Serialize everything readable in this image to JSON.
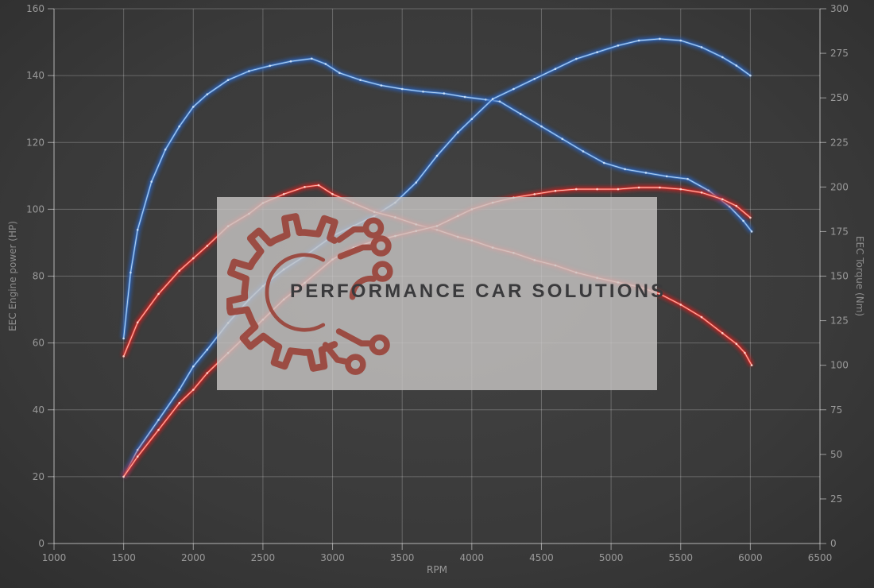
{
  "watermark": {
    "text": "PERFORMANCE CAR SOLUTIONS",
    "box_color": "#c9c7c5",
    "logo_color": "#9a4238",
    "text_color": "#3a3a3c"
  },
  "chart_data": {
    "type": "line",
    "title": "",
    "xlabel": "RPM",
    "x_range": [
      1000,
      6500
    ],
    "x_ticks": [
      1000,
      1500,
      2000,
      2500,
      3000,
      3500,
      4000,
      4500,
      5000,
      5500,
      6000,
      6500
    ],
    "left_axis": {
      "label": "EEC Engine power (HP)",
      "range": [
        0,
        160
      ],
      "ticks": [
        0,
        20,
        40,
        60,
        80,
        100,
        120,
        140,
        160
      ]
    },
    "right_axis": {
      "label": "EEC Torque (Nm)",
      "range": [
        0,
        300
      ],
      "ticks": [
        0,
        25,
        50,
        75,
        100,
        125,
        150,
        175,
        200,
        225,
        250,
        275,
        300
      ]
    },
    "grid": true,
    "legend": "none",
    "series": [
      {
        "name": "torque-blue",
        "unit": "Nm",
        "axis": "right",
        "color": "#4a86d0",
        "glow": "#2a5fb4",
        "highlight": "#cfe3f8",
        "points": [
          [
            1500,
            115
          ],
          [
            1550,
            152
          ],
          [
            1600,
            176
          ],
          [
            1700,
            203
          ],
          [
            1800,
            221
          ],
          [
            1900,
            234
          ],
          [
            2000,
            245
          ],
          [
            2100,
            252
          ],
          [
            2250,
            260
          ],
          [
            2400,
            265
          ],
          [
            2550,
            268
          ],
          [
            2700,
            270.5
          ],
          [
            2850,
            272
          ],
          [
            2950,
            269
          ],
          [
            3050,
            264
          ],
          [
            3200,
            260
          ],
          [
            3350,
            257
          ],
          [
            3500,
            255
          ],
          [
            3650,
            253.5
          ],
          [
            3800,
            252.5
          ],
          [
            3950,
            250.5
          ],
          [
            4100,
            249
          ],
          [
            4200,
            248
          ],
          [
            4350,
            241
          ],
          [
            4500,
            234
          ],
          [
            4650,
            227
          ],
          [
            4800,
            220
          ],
          [
            4950,
            213.5
          ],
          [
            5100,
            210
          ],
          [
            5250,
            208
          ],
          [
            5400,
            206
          ],
          [
            5550,
            204.5
          ],
          [
            5700,
            198
          ],
          [
            5850,
            189
          ],
          [
            5950,
            181
          ],
          [
            6010,
            175
          ]
        ]
      },
      {
        "name": "power-blue",
        "unit": "HP",
        "axis": "left",
        "color": "#4a86d0",
        "glow": "#2a5fb4",
        "highlight": "#cfe3f8",
        "points": [
          [
            1500,
            20
          ],
          [
            1600,
            28
          ],
          [
            1750,
            37
          ],
          [
            1900,
            46
          ],
          [
            2000,
            53
          ],
          [
            2100,
            58
          ],
          [
            2250,
            66
          ],
          [
            2400,
            73
          ],
          [
            2500,
            77
          ],
          [
            2650,
            82
          ],
          [
            2800,
            86
          ],
          [
            3000,
            92
          ],
          [
            3150,
            95
          ],
          [
            3300,
            98
          ],
          [
            3450,
            102
          ],
          [
            3600,
            108
          ],
          [
            3750,
            116
          ],
          [
            3900,
            123
          ],
          [
            4000,
            127
          ],
          [
            4150,
            133
          ],
          [
            4300,
            136
          ],
          [
            4450,
            139
          ],
          [
            4600,
            142
          ],
          [
            4750,
            145
          ],
          [
            4900,
            147
          ],
          [
            5050,
            149
          ],
          [
            5200,
            150.5
          ],
          [
            5350,
            151
          ],
          [
            5500,
            150.5
          ],
          [
            5650,
            148.5
          ],
          [
            5800,
            145.5
          ],
          [
            5900,
            143
          ],
          [
            6000,
            140
          ]
        ]
      },
      {
        "name": "torque-red",
        "unit": "Nm",
        "axis": "right",
        "color": "#e8453c",
        "glow": "#c02020",
        "highlight": "#ffd8d0",
        "points": [
          [
            1500,
            105
          ],
          [
            1600,
            124
          ],
          [
            1750,
            140
          ],
          [
            1900,
            153
          ],
          [
            2000,
            160
          ],
          [
            2100,
            167
          ],
          [
            2250,
            178
          ],
          [
            2400,
            185
          ],
          [
            2500,
            191
          ],
          [
            2650,
            196
          ],
          [
            2800,
            200
          ],
          [
            2900,
            201
          ],
          [
            3000,
            196
          ],
          [
            3150,
            191
          ],
          [
            3300,
            186
          ],
          [
            3450,
            183
          ],
          [
            3600,
            179
          ],
          [
            3750,
            176
          ],
          [
            3900,
            172
          ],
          [
            4000,
            170
          ],
          [
            4150,
            166
          ],
          [
            4300,
            163
          ],
          [
            4450,
            159
          ],
          [
            4600,
            156
          ],
          [
            4750,
            152
          ],
          [
            4900,
            149
          ],
          [
            5050,
            146.5
          ],
          [
            5200,
            144
          ],
          [
            5350,
            140
          ],
          [
            5500,
            134
          ],
          [
            5650,
            127
          ],
          [
            5800,
            118
          ],
          [
            5900,
            112
          ],
          [
            5960,
            107
          ],
          [
            6010,
            100
          ]
        ]
      },
      {
        "name": "power-red",
        "unit": "HP",
        "axis": "left",
        "color": "#e8453c",
        "glow": "#c02020",
        "highlight": "#ffd8d0",
        "points": [
          [
            1500,
            20
          ],
          [
            1600,
            26
          ],
          [
            1750,
            34
          ],
          [
            1900,
            42
          ],
          [
            2000,
            46
          ],
          [
            2100,
            51
          ],
          [
            2250,
            57
          ],
          [
            2400,
            63
          ],
          [
            2500,
            67
          ],
          [
            2650,
            73
          ],
          [
            2800,
            78
          ],
          [
            3000,
            85
          ],
          [
            3150,
            88.5
          ],
          [
            3300,
            90.5
          ],
          [
            3450,
            92
          ],
          [
            3600,
            93.5
          ],
          [
            3750,
            95
          ],
          [
            3900,
            98
          ],
          [
            4000,
            100
          ],
          [
            4150,
            102
          ],
          [
            4300,
            103.5
          ],
          [
            4450,
            104.5
          ],
          [
            4600,
            105.5
          ],
          [
            4750,
            106
          ],
          [
            4900,
            106
          ],
          [
            5050,
            106
          ],
          [
            5200,
            106.5
          ],
          [
            5350,
            106.5
          ],
          [
            5500,
            106
          ],
          [
            5650,
            105
          ],
          [
            5800,
            103
          ],
          [
            5900,
            101
          ],
          [
            6000,
            97.5
          ]
        ]
      }
    ],
    "style": {
      "grid_color": "rgba(255,255,255,0.24)",
      "frame_color": "rgba(255,255,255,0.50)",
      "tick_label_color": "#9a9a9a",
      "axis_title_color": "#8d8d8d"
    }
  }
}
